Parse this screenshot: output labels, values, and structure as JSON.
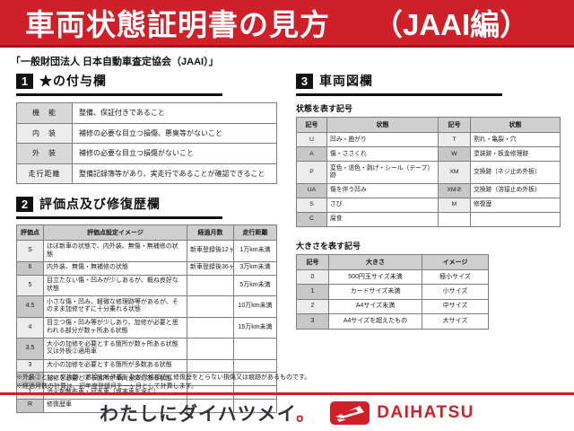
{
  "colors": {
    "accent_red": "#cf202a",
    "accent_dark_red": "#9a141c",
    "ink": "#111111",
    "table_header_gray": "#cfcfcf"
  },
  "header": {
    "title": "車両状態証明書の見方",
    "edition": "（JAAI編）"
  },
  "subtitle": "「一般財団法人 日本自動車査定協会（JAAI）」",
  "sections": {
    "s1": {
      "num": "1",
      "title": "★の付与欄",
      "rows": [
        [
          "機　能",
          "整備、保証付きであること"
        ],
        [
          "内　装",
          "補修の必要な目立つ損傷、悪臭等がないこと"
        ],
        [
          "外　装",
          "補修の必要な目立つ損傷がないこと"
        ],
        [
          "走行距離",
          "整備記録簿等があり、実走行であることが確認できること"
        ]
      ]
    },
    "s2": {
      "num": "2",
      "title": "評価点及び修復歴欄",
      "headers": [
        "評価点",
        "評価点設定イメージ",
        "経過月数",
        "走行距離"
      ],
      "rows": [
        [
          "S",
          "ほぼ新車の状態で、内外装、無傷・無補修の状態",
          "新車登録後12ヶ月以内",
          "1万km未満"
        ],
        [
          "6",
          "内外装、無傷・無補修の状態",
          "新車登録後36ヶ月以内",
          "3万km未満"
        ],
        [
          "5",
          "目立たない傷・凹みが少しあるが、概ね良好な状態",
          "",
          "5万km未満"
        ],
        [
          "4.5",
          "小さな傷・凹み、軽微な修理跡等があるが、そのまま加修せずに十分乗れる状態",
          "",
          "10万km未満"
        ],
        [
          "4",
          "目立つ傷・凹み等が少しあり、加修が必要と思われる部分が数ヶ所ある状態",
          "",
          "15万km未満"
        ],
        [
          "3.5",
          "大小の加修を必要とする箇所が数ヶ所ある状態又は外板②適用車",
          "",
          ""
        ],
        [
          "3",
          "大小の加修を必要とする箇所が多数ある状態",
          "",
          ""
        ],
        [
          "2",
          "加修を必要とする箇所が車両全体にある状態",
          "",
          ""
        ],
        [
          "1",
          "消火剤散布車・冠水車（塩害車を含む）",
          "",
          ""
        ],
        [
          "R",
          "修復歴車",
          "",
          ""
        ]
      ]
    },
    "s3": {
      "num": "3",
      "title": "車両図欄",
      "state_label": "状態を表す記号",
      "state_headers": [
        "記号",
        "状態",
        "記号",
        "状態"
      ],
      "state_rows": [
        [
          "U",
          "凹み・曲がり",
          "T",
          "割れ・亀裂・穴"
        ],
        [
          "A",
          "傷・ささくれ",
          "W",
          "塗装跡・板金修理跡"
        ],
        [
          "P",
          "変色・退色・剥げ・シール（テープ）跡",
          "XM",
          "交換跡（ネジ止め外板）"
        ],
        [
          "UA",
          "傷を伴う凹み",
          "XM②",
          "交換跡（溶接止め外板）"
        ],
        [
          "S",
          "さび",
          "M",
          "修復歴"
        ],
        [
          "C",
          "腐食",
          "",
          ""
        ]
      ],
      "size_label": "大きさを表す記号",
      "size_headers": [
        "記号",
        "大きさ",
        "イメージ"
      ],
      "size_rows": [
        [
          "0",
          "500円玉サイズ未満",
          "極小サイズ"
        ],
        [
          "1",
          "カードサイズ未満",
          "小サイズ"
        ],
        [
          "2",
          "A4サイズ未満",
          "中サイズ"
        ],
        [
          "3",
          "A4サイズを超えたもの",
          "大サイズ"
        ]
      ]
    }
  },
  "notes": [
    "※外装②とは、交換跡（溶接止め外板）及び骨格部位に修復歴をとらない損傷又は痕跡があるものです。",
    "※経過月数の計算は、初年度登録月を一ヶ月として計算します。"
  ],
  "footer": {
    "slogan": "わたしにダイハツメイ",
    "slogan_period": "。",
    "brand": "DAIHATSU"
  }
}
